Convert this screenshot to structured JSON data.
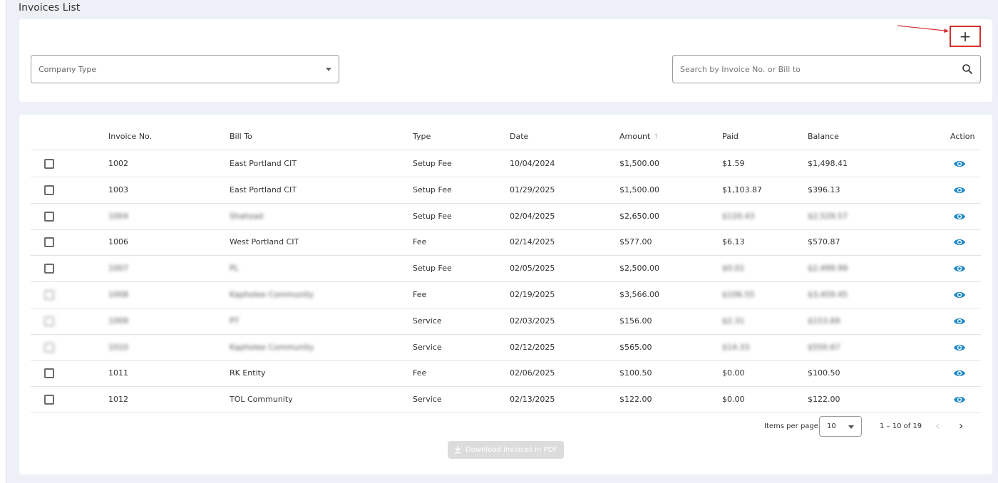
{
  "page": {
    "title": "Invoices List"
  },
  "filters": {
    "company_type_placeholder": "Company Type",
    "search_placeholder": "Search by Invoice No. or Bill to"
  },
  "table": {
    "columns": [
      "Invoice No.",
      "Bill To",
      "Type",
      "Date",
      "Amount",
      "Paid",
      "Balance",
      "Action"
    ],
    "rows": [
      {
        "invoice": "1002",
        "bill_to": "East Portland CIT",
        "type": "Setup Fee",
        "date": "10/04/2024",
        "amount": "$1,500.00",
        "paid": "$1.59",
        "balance": "$1,498.41"
      },
      {
        "invoice": "1003",
        "bill_to": "East Portland CIT",
        "type": "Setup Fee",
        "date": "01/29/2025",
        "amount": "$1,500.00",
        "paid": "$1,103.87",
        "balance": "$396.13"
      },
      {
        "invoice": "1004",
        "bill_to": "Shahzad",
        "type": "Setup Fee",
        "date": "02/04/2025",
        "amount": "$2,650.00",
        "paid": "$120.43",
        "balance": "$2,529.57"
      },
      {
        "invoice": "1006",
        "bill_to": "West Portland CIT",
        "type": "Fee",
        "date": "02/14/2025",
        "amount": "$577.00",
        "paid": "$6.13",
        "balance": "$570.87"
      },
      {
        "invoice": "1007",
        "bill_to": "PL",
        "type": "Setup Fee",
        "date": "02/05/2025",
        "amount": "$2,500.00",
        "paid": "$0.01",
        "balance": "$2,499.99"
      },
      {
        "invoice": "1008",
        "bill_to": "Kapholee Community",
        "type": "Fee",
        "date": "02/19/2025",
        "amount": "$3,566.00",
        "paid": "$106.55",
        "balance": "$3,459.45"
      },
      {
        "invoice": "1009",
        "bill_to": "PT",
        "type": "Service",
        "date": "02/03/2025",
        "amount": "$156.00",
        "paid": "$2.31",
        "balance": "$153.69"
      },
      {
        "invoice": "1010",
        "bill_to": "Kapholee Community",
        "type": "Service",
        "date": "02/12/2025",
        "amount": "$565.00",
        "paid": "$14.33",
        "balance": "$550.67"
      },
      {
        "invoice": "1011",
        "bill_to": "RK Entity",
        "type": "Fee",
        "date": "02/06/2025",
        "amount": "$100.50",
        "paid": "$0.00",
        "balance": "$100.50"
      },
      {
        "invoice": "1012",
        "bill_to": "TOL Community",
        "type": "Service",
        "date": "02/13/2025",
        "amount": "$122.00",
        "paid": "$0.00",
        "balance": "$122.00"
      }
    ]
  },
  "pagination": {
    "items_per_page_label": "Items per page:",
    "items_per_page_value": "10",
    "range_label": "1 – 10 of 19"
  },
  "download": {
    "label": "Download Invoices in PDF"
  },
  "colors": {
    "accent": "#1e88c7",
    "highlight": "#d32f2f"
  }
}
